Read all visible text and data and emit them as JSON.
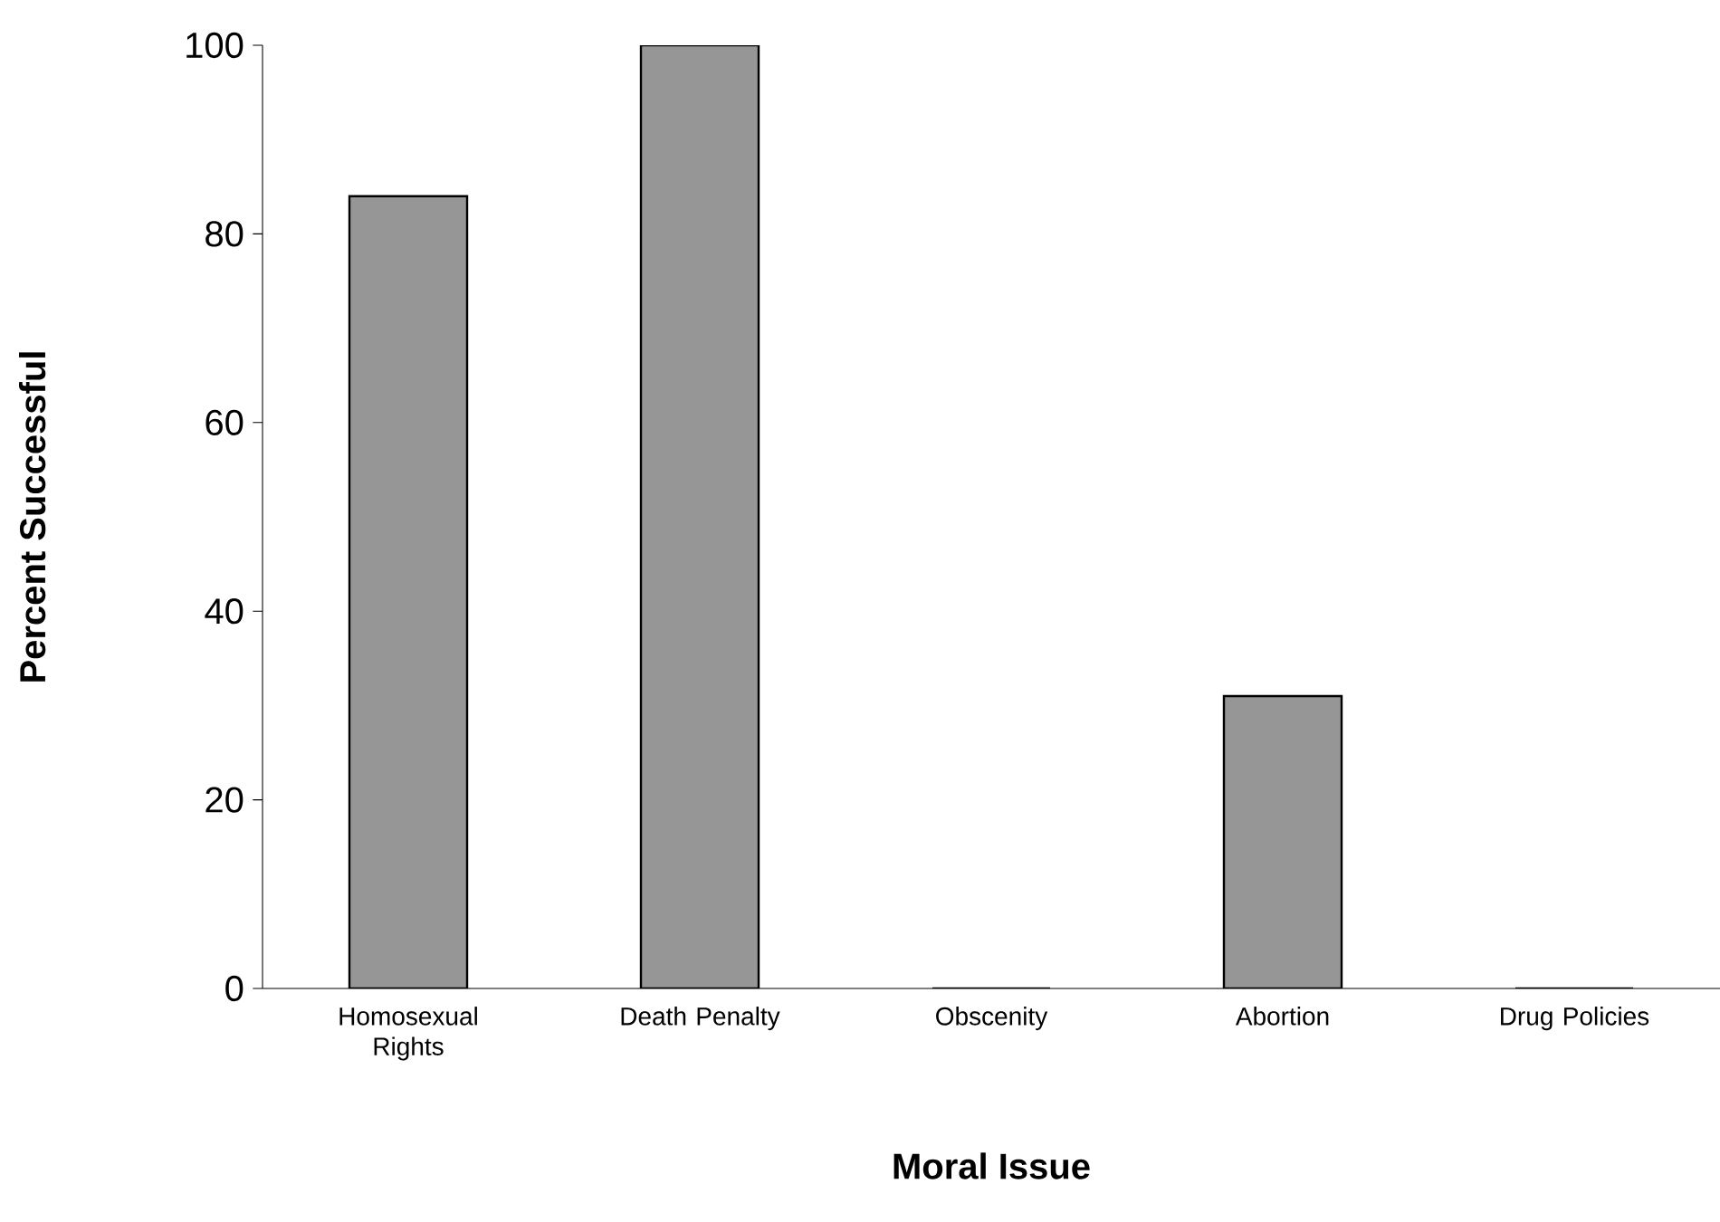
{
  "chart_data": {
    "type": "bar",
    "xlabel": "Moral Issue",
    "ylabel": "Percent Successful",
    "categories": [
      "Homosexual Rights",
      "Death Penalty",
      "Obscenity",
      "Abortion",
      "Drug Policies"
    ],
    "values": [
      84,
      100,
      0,
      31,
      0
    ],
    "color": "#969696",
    "ylim": [
      0,
      100
    ],
    "yticks": [
      0,
      20,
      40,
      60,
      80,
      100
    ]
  }
}
